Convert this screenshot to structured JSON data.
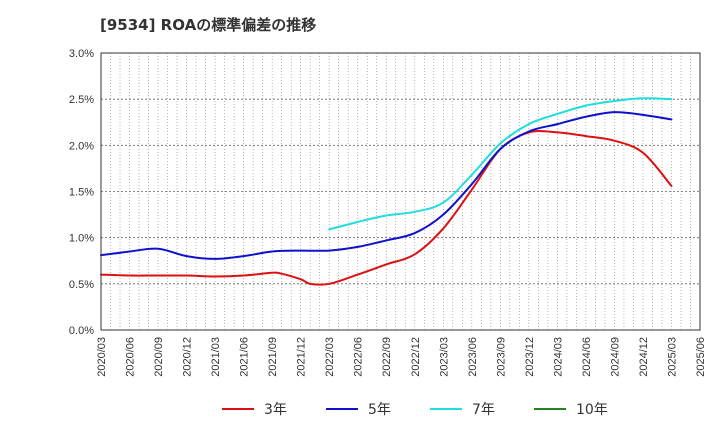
{
  "chart_data": {
    "type": "line",
    "title": "[9534]  ROAの標準偏差の推移",
    "xlabel": "",
    "ylabel": "",
    "ylim": [
      0,
      3.0
    ],
    "y_ticks": [
      "0.0%",
      "0.5%",
      "1.0%",
      "1.5%",
      "2.0%",
      "2.5%",
      "3.0%"
    ],
    "x_ticks": [
      "2020/03",
      "2020/06",
      "2020/09",
      "2020/12",
      "2021/03",
      "2021/06",
      "2021/09",
      "2021/12",
      "2022/03",
      "2022/06",
      "2022/09",
      "2022/12",
      "2023/03",
      "2023/06",
      "2023/09",
      "2023/12",
      "2024/03",
      "2024/06",
      "2024/09",
      "2024/12",
      "2025/03",
      "2025/06"
    ],
    "grid": true,
    "legend_position": "bottom",
    "series": [
      {
        "name": "3年",
        "color": "#dd1111",
        "points": [
          [
            "2020/03",
            0.6
          ],
          [
            "2020/06",
            0.59
          ],
          [
            "2020/09",
            0.59
          ],
          [
            "2020/12",
            0.59
          ],
          [
            "2021/03",
            0.58
          ],
          [
            "2021/06",
            0.59
          ],
          [
            "2021/09",
            0.62
          ],
          [
            "2021/10",
            0.61
          ],
          [
            "2021/12",
            0.55
          ],
          [
            "2022/01",
            0.5
          ],
          [
            "2022/03",
            0.5
          ],
          [
            "2022/06",
            0.6
          ],
          [
            "2022/09",
            0.71
          ],
          [
            "2022/12",
            0.82
          ],
          [
            "2023/03",
            1.1
          ],
          [
            "2023/06",
            1.52
          ],
          [
            "2023/09",
            1.96
          ],
          [
            "2023/12",
            2.14
          ],
          [
            "2024/03",
            2.14
          ],
          [
            "2024/06",
            2.1
          ],
          [
            "2024/09",
            2.05
          ],
          [
            "2024/12",
            1.92
          ],
          [
            "2025/03",
            1.56
          ]
        ]
      },
      {
        "name": "5年",
        "color": "#1111cc",
        "points": [
          [
            "2020/03",
            0.81
          ],
          [
            "2020/06",
            0.85
          ],
          [
            "2020/09",
            0.88
          ],
          [
            "2020/12",
            0.8
          ],
          [
            "2021/03",
            0.77
          ],
          [
            "2021/06",
            0.8
          ],
          [
            "2021/09",
            0.85
          ],
          [
            "2021/12",
            0.86
          ],
          [
            "2022/03",
            0.86
          ],
          [
            "2022/06",
            0.9
          ],
          [
            "2022/09",
            0.97
          ],
          [
            "2022/12",
            1.05
          ],
          [
            "2023/03",
            1.25
          ],
          [
            "2023/06",
            1.58
          ],
          [
            "2023/09",
            1.96
          ],
          [
            "2023/12",
            2.15
          ],
          [
            "2024/03",
            2.23
          ],
          [
            "2024/06",
            2.31
          ],
          [
            "2024/09",
            2.36
          ],
          [
            "2024/12",
            2.33
          ],
          [
            "2025/03",
            2.28
          ]
        ]
      },
      {
        "name": "7年",
        "color": "#22dddd",
        "points": [
          [
            "2022/03",
            1.09
          ],
          [
            "2022/06",
            1.17
          ],
          [
            "2022/09",
            1.24
          ],
          [
            "2022/12",
            1.28
          ],
          [
            "2023/03",
            1.38
          ],
          [
            "2023/06",
            1.68
          ],
          [
            "2023/09",
            2.02
          ],
          [
            "2023/12",
            2.23
          ],
          [
            "2024/03",
            2.34
          ],
          [
            "2024/06",
            2.43
          ],
          [
            "2024/09",
            2.48
          ],
          [
            "2024/12",
            2.51
          ],
          [
            "2025/03",
            2.5
          ]
        ]
      },
      {
        "name": "10年",
        "color": "#228822",
        "points": []
      }
    ]
  }
}
